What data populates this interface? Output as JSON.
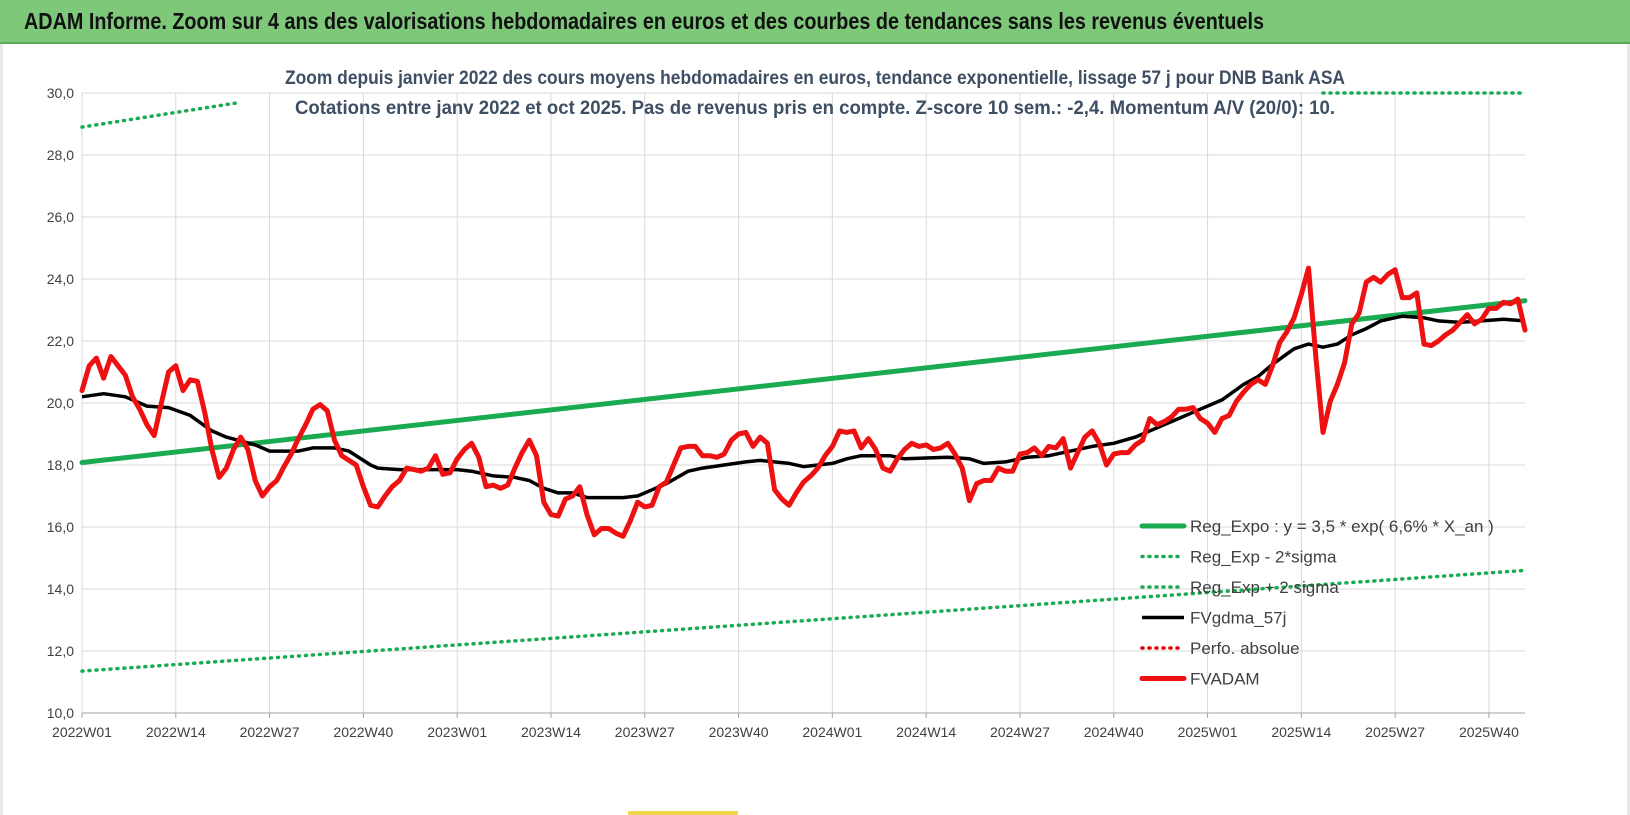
{
  "header": {
    "title": "ADAM Informe. Zoom sur 4 ans des valorisations hebdomadaires en euros et des courbes de tendances sans les revenus éventuels"
  },
  "colors": {
    "banner": "#7ec87a",
    "reg_expo": "#1aab52",
    "bands": "#1aab52",
    "fvgdma": "#000000",
    "perfo": "#e00000",
    "fvadam": "#ee1111",
    "grid": "#d9d9d9"
  },
  "chart_data": {
    "type": "line",
    "title": "Zoom depuis janvier 2022 des cours moyens hebdomadaires en euros, tendance exponentielle, lissage 57 j pour DNB Bank ASA",
    "subtitle": "Cotations entre janv 2022 et oct 2025. Pas de revenus pris en compte. Z-score 10 sem.: -2,4. Momentum A/V (20/0): 10.",
    "xlabel": "",
    "ylabel": "",
    "ylim": [
      10,
      30
    ],
    "yticks": [
      "10,0",
      "12,0",
      "14,0",
      "16,0",
      "18,0",
      "20,0",
      "22,0",
      "24,0",
      "26,0",
      "28,0",
      "30,0"
    ],
    "x_tick_labels": [
      "2022W01",
      "2022W14",
      "2022W27",
      "2022W40",
      "2023W01",
      "2023W14",
      "2023W27",
      "2023W40",
      "2024W01",
      "2024W14",
      "2024W27",
      "2024W40",
      "2025W01",
      "2025W14",
      "2025W27",
      "2025W40"
    ],
    "x_tick_index": [
      0,
      13,
      26,
      39,
      52,
      65,
      78,
      91,
      104,
      117,
      130,
      143,
      156,
      169,
      182,
      195
    ],
    "n_points": 201,
    "legend_position": "right",
    "grid": true,
    "series": [
      {
        "name": "Reg_Expo : y = 3,5 * exp( 6,6% *  X_an )",
        "style": "solid-thick",
        "color": "#1aab52",
        "points": [
          [
            0,
            18.08
          ],
          [
            200,
            23.3
          ]
        ]
      },
      {
        "name": "Reg_Exp - 2*sigma",
        "style": "dotted",
        "color": "#1aab52",
        "points": [
          [
            0,
            11.35
          ],
          [
            200,
            14.6
          ]
        ]
      },
      {
        "name": "Reg_Exp + 2 sigma",
        "style": "dotted",
        "color": "#1aab52",
        "points": [
          [
            0,
            28.9
          ],
          [
            22,
            29.7
          ]
        ],
        "points_right": [
          [
            172,
            30.0
          ],
          [
            200,
            30.0
          ]
        ]
      },
      {
        "name": "FVgdma_57j",
        "style": "solid",
        "color": "#000000",
        "points": [
          [
            0,
            20.2
          ],
          [
            3,
            20.3
          ],
          [
            6,
            20.2
          ],
          [
            9,
            19.9
          ],
          [
            12,
            19.85
          ],
          [
            15,
            19.6
          ],
          [
            18,
            19.1
          ],
          [
            20,
            18.9
          ],
          [
            24,
            18.65
          ],
          [
            26,
            18.45
          ],
          [
            30,
            18.45
          ],
          [
            32,
            18.55
          ],
          [
            35,
            18.55
          ],
          [
            37,
            18.45
          ],
          [
            40,
            18.0
          ],
          [
            41,
            17.9
          ],
          [
            44,
            17.85
          ],
          [
            52,
            17.85
          ],
          [
            54,
            17.8
          ],
          [
            57,
            17.65
          ],
          [
            60,
            17.6
          ],
          [
            62,
            17.5
          ],
          [
            64,
            17.25
          ],
          [
            66,
            17.1
          ],
          [
            68,
            17.1
          ],
          [
            70,
            16.95
          ],
          [
            75,
            16.95
          ],
          [
            77,
            17.0
          ],
          [
            79,
            17.2
          ],
          [
            81,
            17.4
          ],
          [
            84,
            17.8
          ],
          [
            86,
            17.9
          ],
          [
            89,
            18.0
          ],
          [
            92,
            18.1
          ],
          [
            94,
            18.15
          ],
          [
            98,
            18.05
          ],
          [
            100,
            17.95
          ],
          [
            104,
            18.05
          ],
          [
            106,
            18.2
          ],
          [
            108,
            18.3
          ],
          [
            112,
            18.3
          ],
          [
            114,
            18.2
          ],
          [
            120,
            18.25
          ],
          [
            123,
            18.2
          ],
          [
            125,
            18.05
          ],
          [
            128,
            18.1
          ],
          [
            131,
            18.25
          ],
          [
            134,
            18.3
          ],
          [
            137,
            18.45
          ],
          [
            140,
            18.6
          ],
          [
            143,
            18.7
          ],
          [
            146,
            18.9
          ],
          [
            149,
            19.2
          ],
          [
            152,
            19.5
          ],
          [
            155,
            19.8
          ],
          [
            158,
            20.1
          ],
          [
            161,
            20.6
          ],
          [
            163,
            20.85
          ],
          [
            165,
            21.25
          ],
          [
            168,
            21.75
          ],
          [
            170,
            21.9
          ],
          [
            172,
            21.8
          ],
          [
            174,
            21.9
          ],
          [
            176,
            22.2
          ],
          [
            178,
            22.4
          ],
          [
            180,
            22.65
          ],
          [
            183,
            22.8
          ],
          [
            186,
            22.75
          ],
          [
            188,
            22.65
          ],
          [
            191,
            22.6
          ],
          [
            194,
            22.65
          ],
          [
            197,
            22.7
          ],
          [
            200,
            22.65
          ]
        ]
      },
      {
        "name": "Perfo. absolue",
        "style": "dotted",
        "color": "#e00000",
        "points": []
      },
      {
        "name": "FVADAM",
        "style": "solid-thick",
        "color": "#ee1111",
        "points": [
          [
            0,
            20.4
          ],
          [
            1,
            21.2
          ],
          [
            2,
            21.45
          ],
          [
            3,
            20.8
          ],
          [
            4,
            21.5
          ],
          [
            5,
            21.2
          ],
          [
            6,
            20.9
          ],
          [
            7,
            20.2
          ],
          [
            8,
            19.8
          ],
          [
            9,
            19.3
          ],
          [
            10,
            18.95
          ],
          [
            11,
            20.0
          ],
          [
            12,
            21.0
          ],
          [
            13,
            21.2
          ],
          [
            14,
            20.4
          ],
          [
            15,
            20.75
          ],
          [
            16,
            20.7
          ],
          [
            17,
            19.7
          ],
          [
            18,
            18.5
          ],
          [
            19,
            17.6
          ],
          [
            20,
            17.9
          ],
          [
            21,
            18.5
          ],
          [
            22,
            18.9
          ],
          [
            23,
            18.5
          ],
          [
            24,
            17.5
          ],
          [
            25,
            17.0
          ],
          [
            26,
            17.3
          ],
          [
            27,
            17.5
          ],
          [
            28,
            17.95
          ],
          [
            29,
            18.35
          ],
          [
            30,
            18.85
          ],
          [
            31,
            19.3
          ],
          [
            32,
            19.8
          ],
          [
            33,
            19.95
          ],
          [
            34,
            19.75
          ],
          [
            35,
            18.8
          ],
          [
            36,
            18.3
          ],
          [
            37,
            18.15
          ],
          [
            38,
            18.0
          ],
          [
            39,
            17.3
          ],
          [
            40,
            16.7
          ],
          [
            41,
            16.65
          ],
          [
            42,
            17.0
          ],
          [
            43,
            17.3
          ],
          [
            44,
            17.5
          ],
          [
            45,
            17.9
          ],
          [
            46,
            17.85
          ],
          [
            47,
            17.8
          ],
          [
            48,
            17.9
          ],
          [
            49,
            18.3
          ],
          [
            50,
            17.7
          ],
          [
            51,
            17.75
          ],
          [
            52,
            18.2
          ],
          [
            53,
            18.5
          ],
          [
            54,
            18.7
          ],
          [
            55,
            18.25
          ],
          [
            56,
            17.3
          ],
          [
            57,
            17.35
          ],
          [
            58,
            17.25
          ],
          [
            59,
            17.35
          ],
          [
            60,
            17.9
          ],
          [
            61,
            18.4
          ],
          [
            62,
            18.8
          ],
          [
            63,
            18.3
          ],
          [
            64,
            16.8
          ],
          [
            65,
            16.4
          ],
          [
            66,
            16.35
          ],
          [
            67,
            16.9
          ],
          [
            68,
            17.0
          ],
          [
            69,
            17.3
          ],
          [
            70,
            16.4
          ],
          [
            71,
            15.75
          ],
          [
            72,
            15.95
          ],
          [
            73,
            15.95
          ],
          [
            74,
            15.8
          ],
          [
            75,
            15.7
          ],
          [
            76,
            16.2
          ],
          [
            77,
            16.8
          ],
          [
            78,
            16.65
          ],
          [
            79,
            16.7
          ],
          [
            80,
            17.3
          ],
          [
            81,
            17.45
          ],
          [
            82,
            18.0
          ],
          [
            83,
            18.55
          ],
          [
            84,
            18.6
          ],
          [
            85,
            18.6
          ],
          [
            86,
            18.3
          ],
          [
            87,
            18.3
          ],
          [
            88,
            18.25
          ],
          [
            89,
            18.35
          ],
          [
            90,
            18.8
          ],
          [
            91,
            19.0
          ],
          [
            92,
            19.05
          ],
          [
            93,
            18.6
          ],
          [
            94,
            18.9
          ],
          [
            95,
            18.7
          ],
          [
            96,
            17.2
          ],
          [
            97,
            16.9
          ],
          [
            98,
            16.7
          ],
          [
            99,
            17.1
          ],
          [
            100,
            17.45
          ],
          [
            101,
            17.65
          ],
          [
            102,
            17.9
          ],
          [
            103,
            18.3
          ],
          [
            104,
            18.6
          ],
          [
            105,
            19.1
          ],
          [
            106,
            19.05
          ],
          [
            107,
            19.1
          ],
          [
            108,
            18.55
          ],
          [
            109,
            18.85
          ],
          [
            110,
            18.5
          ],
          [
            111,
            17.9
          ],
          [
            112,
            17.8
          ],
          [
            113,
            18.2
          ],
          [
            114,
            18.5
          ],
          [
            115,
            18.7
          ],
          [
            116,
            18.6
          ],
          [
            117,
            18.65
          ],
          [
            118,
            18.5
          ],
          [
            119,
            18.55
          ],
          [
            120,
            18.7
          ],
          [
            121,
            18.35
          ],
          [
            122,
            17.9
          ],
          [
            123,
            16.85
          ],
          [
            124,
            17.4
          ],
          [
            125,
            17.5
          ],
          [
            126,
            17.5
          ],
          [
            127,
            17.9
          ],
          [
            128,
            17.8
          ],
          [
            129,
            17.8
          ],
          [
            130,
            18.35
          ],
          [
            131,
            18.4
          ],
          [
            132,
            18.55
          ],
          [
            133,
            18.3
          ],
          [
            134,
            18.6
          ],
          [
            135,
            18.55
          ],
          [
            136,
            18.85
          ],
          [
            137,
            17.9
          ],
          [
            138,
            18.4
          ],
          [
            139,
            18.9
          ],
          [
            140,
            19.1
          ],
          [
            141,
            18.7
          ],
          [
            142,
            18.0
          ],
          [
            143,
            18.35
          ],
          [
            144,
            18.4
          ],
          [
            145,
            18.4
          ],
          [
            146,
            18.65
          ],
          [
            147,
            18.8
          ],
          [
            148,
            19.5
          ],
          [
            149,
            19.3
          ],
          [
            150,
            19.4
          ],
          [
            151,
            19.55
          ],
          [
            152,
            19.8
          ],
          [
            153,
            19.8
          ],
          [
            154,
            19.85
          ],
          [
            155,
            19.5
          ],
          [
            156,
            19.35
          ],
          [
            157,
            19.05
          ],
          [
            158,
            19.5
          ],
          [
            159,
            19.6
          ],
          [
            160,
            20.05
          ],
          [
            161,
            20.35
          ],
          [
            162,
            20.6
          ],
          [
            163,
            20.75
          ],
          [
            164,
            20.6
          ],
          [
            165,
            21.2
          ],
          [
            166,
            21.95
          ],
          [
            167,
            22.3
          ],
          [
            168,
            22.75
          ],
          [
            169,
            23.5
          ],
          [
            170,
            24.35
          ],
          [
            171,
            21.5
          ],
          [
            172,
            19.05
          ],
          [
            173,
            20.05
          ],
          [
            174,
            20.6
          ],
          [
            175,
            21.3
          ],
          [
            176,
            22.55
          ],
          [
            177,
            22.9
          ],
          [
            178,
            23.9
          ],
          [
            179,
            24.05
          ],
          [
            180,
            23.9
          ],
          [
            181,
            24.15
          ],
          [
            182,
            24.3
          ],
          [
            183,
            23.4
          ],
          [
            184,
            23.4
          ],
          [
            185,
            23.55
          ],
          [
            186,
            21.9
          ],
          [
            187,
            21.85
          ],
          [
            188,
            22.0
          ],
          [
            189,
            22.2
          ],
          [
            190,
            22.35
          ],
          [
            191,
            22.6
          ],
          [
            192,
            22.85
          ],
          [
            193,
            22.55
          ],
          [
            194,
            22.7
          ],
          [
            195,
            23.05
          ],
          [
            196,
            23.05
          ],
          [
            197,
            23.25
          ],
          [
            198,
            23.2
          ],
          [
            199,
            23.35
          ],
          [
            200,
            22.35
          ]
        ]
      }
    ]
  }
}
